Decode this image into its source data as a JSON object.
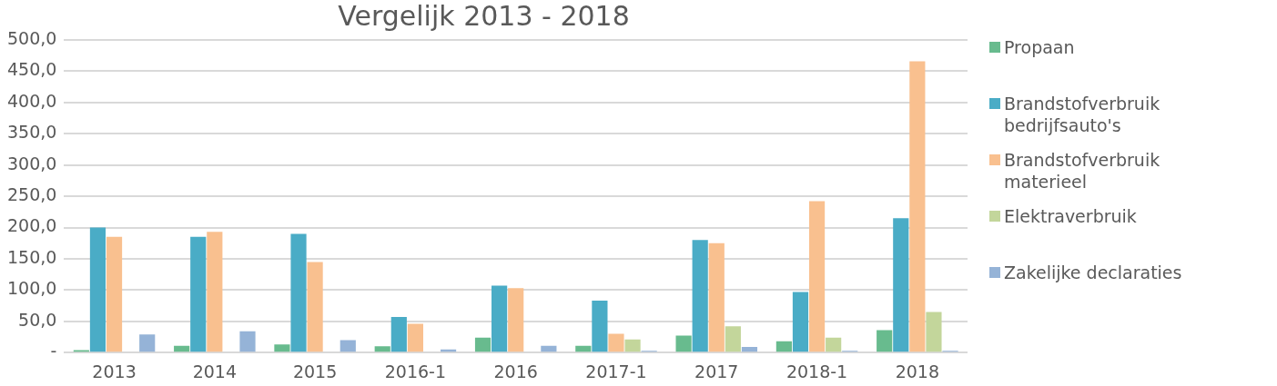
{
  "chart_data": {
    "type": "bar",
    "title": "Vergelijk 2013 - 2018",
    "categories": [
      "2013",
      "2014",
      "2015",
      "2016-1",
      "2016",
      "2017-1",
      "2017",
      "2018-1",
      "2018"
    ],
    "series": [
      {
        "name": "Propaan",
        "color": "#68bb8e",
        "values": [
          4,
          11,
          13,
          10,
          24,
          11,
          27,
          18,
          36
        ]
      },
      {
        "name": "Brandstofverbruik bedrijfsauto's",
        "color": "#4aacc6",
        "values": [
          200,
          185,
          190,
          57,
          107,
          83,
          180,
          97,
          215
        ]
      },
      {
        "name": "Brandstofverbruik materieel",
        "color": "#f9c08f",
        "values": [
          185,
          193,
          145,
          46,
          103,
          30,
          175,
          242,
          466
        ]
      },
      {
        "name": "Elektraverbruik",
        "color": "#c3d69b",
        "values": [
          null,
          null,
          null,
          null,
          null,
          21,
          42,
          24,
          65
        ]
      },
      {
        "name": "Zakelijke declaraties",
        "color": "#95b3d7",
        "values": [
          29,
          34,
          20,
          5,
          11,
          3,
          9,
          3,
          3
        ]
      }
    ],
    "ylim": [
      0,
      500
    ],
    "yticks": [
      {
        "value": 0,
        "label": "-"
      },
      {
        "value": 50,
        "label": "50,0"
      },
      {
        "value": 100,
        "label": "100,0"
      },
      {
        "value": 150,
        "label": "150,0"
      },
      {
        "value": 200,
        "label": "200,0"
      },
      {
        "value": 250,
        "label": "250,0"
      },
      {
        "value": 300,
        "label": "300,0"
      },
      {
        "value": 350,
        "label": "350,0"
      },
      {
        "value": 400,
        "label": "400,0"
      },
      {
        "value": 450,
        "label": "450,0"
      },
      {
        "value": 500,
        "label": "500,0"
      }
    ],
    "grid": "y",
    "legend": "right"
  }
}
